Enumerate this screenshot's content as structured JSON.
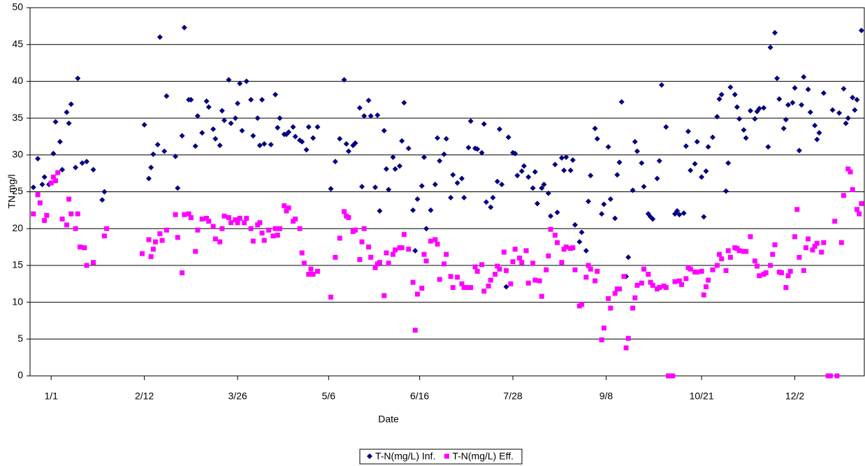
{
  "chart_data": {
    "type": "scatter",
    "x_label": "Date",
    "y_label": "TN mg/l",
    "xlim": [
      -8.5,
      367.3
    ],
    "xticks": [
      {
        "value": 1,
        "label": "1/1"
      },
      {
        "value": 43,
        "label": "2/12"
      },
      {
        "value": 85,
        "label": "3/26"
      },
      {
        "value": 126,
        "label": "5/6"
      },
      {
        "value": 167,
        "label": "6/16"
      },
      {
        "value": 209,
        "label": "7/28"
      },
      {
        "value": 251,
        "label": "9/8"
      },
      {
        "value": 294,
        "label": "10/21"
      },
      {
        "value": 336,
        "label": "12/2"
      }
    ],
    "ylim": [
      0,
      50
    ],
    "yticks": [
      0,
      5,
      10,
      15,
      20,
      25,
      30,
      35,
      40,
      45,
      50
    ],
    "grid": true,
    "legend": "bottom",
    "series": [
      {
        "name": "T-N(mg/L) Inf.",
        "color": "#000080",
        "marker": "diamond",
        "x": [
          -7,
          -5,
          -3,
          -2,
          0,
          2,
          3,
          5,
          6,
          8,
          9,
          10,
          12,
          13,
          15,
          17,
          20,
          24,
          25,
          43,
          45,
          46,
          47,
          49,
          50,
          52,
          53,
          57,
          58,
          60,
          61,
          63,
          64,
          66,
          67,
          69,
          71,
          72,
          74,
          75,
          77,
          78,
          79,
          81,
          82,
          84,
          85,
          86,
          87,
          89,
          91,
          92,
          94,
          95,
          96,
          97,
          100,
          102,
          103,
          104,
          106,
          107,
          108,
          110,
          111,
          113,
          114,
          116,
          117,
          119,
          121,
          127,
          129,
          131,
          133,
          134,
          135,
          137,
          138,
          140,
          141,
          142,
          144,
          145,
          147,
          148,
          149,
          151,
          152,
          153,
          155,
          156,
          158,
          159,
          160,
          162,
          164,
          165,
          166,
          168,
          169,
          170,
          172,
          174,
          175,
          176,
          178,
          179,
          181,
          182,
          184,
          186,
          187,
          189,
          190,
          192,
          193,
          195,
          196,
          197,
          199,
          200,
          202,
          203,
          204,
          206,
          207,
          209,
          210,
          211,
          213,
          214,
          216,
          218,
          219,
          220,
          222,
          223,
          225,
          226,
          228,
          229,
          231,
          232,
          233,
          235,
          236,
          237,
          239,
          240,
          242,
          243,
          244,
          246,
          247,
          249,
          250,
          252,
          253,
          255,
          256,
          257,
          258,
          260,
          261,
          263,
          264,
          265,
          267,
          268,
          270,
          271,
          272,
          274,
          275,
          276,
          278,
          282,
          283,
          284,
          286,
          287,
          288,
          289,
          291,
          292,
          294,
          295,
          296,
          297,
          299,
          301,
          302,
          303,
          305,
          306,
          307,
          309,
          310,
          311,
          313,
          314,
          316,
          318,
          319,
          320,
          322,
          324,
          325,
          327,
          328,
          329,
          331,
          332,
          333,
          335,
          336,
          338,
          339,
          340,
          342,
          343,
          345,
          346,
          347,
          349,
          353,
          356,
          358,
          359,
          360,
          362,
          363,
          364,
          366
        ],
        "values": [
          25.6,
          29.5,
          26,
          27,
          26,
          30.2,
          34.5,
          31.8,
          28,
          35.8,
          34.3,
          36.9,
          28.3,
          40.4,
          28.9,
          29.1,
          28,
          23.9,
          25,
          34.1,
          26.8,
          28.3,
          30.1,
          31.4,
          46,
          30.5,
          38,
          29.8,
          25.5,
          32.6,
          47.3,
          37.5,
          37.5,
          31.2,
          35.3,
          33,
          37.3,
          36.5,
          33.5,
          32.2,
          31.3,
          36,
          34.7,
          40.2,
          34.3,
          35,
          37,
          39.7,
          33.3,
          40,
          37.5,
          32.6,
          35,
          31.3,
          37.5,
          31.5,
          31.4,
          38.2,
          33.7,
          35,
          32.8,
          32.8,
          33.1,
          33.8,
          32.5,
          32,
          31.8,
          30.7,
          33.8,
          32.3,
          33.8,
          25.4,
          29.1,
          32.2,
          40.2,
          31.5,
          30.5,
          31.3,
          31.6,
          36.4,
          25.7,
          35.3,
          37.4,
          35.3,
          25.6,
          35.4,
          22.4,
          33.3,
          28.1,
          25.3,
          29.7,
          28.1,
          28.5,
          31.9,
          37.1,
          30.9,
          22.5,
          17,
          24,
          25.8,
          29.7,
          20,
          22.5,
          26,
          32.3,
          29.2,
          30.1,
          32.2,
          24.2,
          27.3,
          26.2,
          26.8,
          24.2,
          31,
          34.6,
          30.9,
          30.8,
          30.3,
          34.2,
          23.6,
          22.9,
          24.2,
          26.4,
          33.5,
          26,
          12.1,
          32.4,
          30.3,
          30.2,
          27.2,
          27.8,
          28.5,
          27,
          25.5,
          27.7,
          23.4,
          25.5,
          26,
          24.8,
          21.7,
          28.7,
          22.2,
          29.6,
          27.9,
          29.7,
          27.9,
          29.3,
          20.5,
          18.2,
          19.5,
          17,
          23.7,
          27.2,
          33.6,
          32.2,
          22,
          23.3,
          31.1,
          24,
          21.4,
          27.3,
          29,
          37.2,
          13.5,
          16.1,
          25.2,
          31.8,
          30.5,
          28.9,
          25.7,
          22,
          21.6,
          21.3,
          26.8,
          29.2,
          39.5,
          33.8,
          22,
          22.4,
          21.9,
          22.1,
          31.2,
          33.2,
          27.9,
          28.8,
          31.8,
          27,
          21.6,
          27.8,
          31.1,
          32.4,
          35.2,
          37.6,
          38.2,
          25.1,
          28.9,
          39.2,
          38.2,
          36.5,
          34.9,
          33.4,
          32.3,
          36,
          34.9,
          35.9,
          36.3,
          36.4,
          31.1,
          44.6,
          46.6,
          40.4,
          37.6,
          33.6,
          34.8,
          36.8,
          37.1,
          39.1,
          30.6,
          36.8,
          40.6,
          38.9,
          35.8,
          34,
          32.1,
          33,
          38.4,
          36.1,
          35.7,
          39,
          34.3,
          35,
          37.8,
          36.1,
          37.5,
          46.9
        ]
      },
      {
        "name": "T-N(mg/L) Eff.",
        "color": "#ff00ff",
        "marker": "square",
        "x": [
          -7,
          -5,
          -4,
          -2,
          -1,
          1,
          2,
          3,
          4,
          6,
          8,
          9,
          10,
          12,
          13,
          14,
          16,
          17,
          20,
          25,
          26,
          42,
          45,
          46,
          47,
          48,
          50,
          51,
          53,
          57,
          58,
          60,
          61,
          63,
          64,
          66,
          67,
          69,
          71,
          72,
          74,
          75,
          77,
          78,
          79,
          81,
          82,
          84,
          85,
          86,
          88,
          89,
          91,
          92,
          94,
          95,
          96,
          97,
          99,
          101,
          102,
          103,
          104,
          106,
          107,
          108,
          110,
          111,
          113,
          114,
          115,
          117,
          118,
          119,
          121,
          127,
          129,
          131,
          133,
          134,
          135,
          137,
          138,
          140,
          141,
          142,
          144,
          145,
          147,
          148,
          149,
          151,
          152,
          153,
          155,
          156,
          158,
          159,
          160,
          162,
          164,
          165,
          166,
          168,
          169,
          170,
          172,
          174,
          175,
          176,
          178,
          179,
          181,
          182,
          184,
          186,
          187,
          189,
          190,
          192,
          193,
          195,
          196,
          198,
          199,
          201,
          202,
          203,
          205,
          206,
          208,
          209,
          210,
          212,
          213,
          215,
          216,
          218,
          219,
          221,
          222,
          224,
          225,
          226,
          228,
          229,
          231,
          232,
          233,
          235,
          236,
          237,
          239,
          240,
          242,
          243,
          244,
          246,
          247,
          249,
          250,
          252,
          253,
          255,
          256,
          257,
          259,
          260,
          261,
          263,
          264,
          265,
          267,
          268,
          270,
          271,
          272,
          274,
          275,
          277,
          278,
          279,
          281,
          282,
          284,
          285,
          287,
          288,
          289,
          291,
          292,
          294,
          295,
          296,
          297,
          299,
          301,
          302,
          303,
          305,
          306,
          307,
          309,
          310,
          311,
          313,
          314,
          316,
          318,
          319,
          320,
          322,
          323,
          325,
          326,
          327,
          329,
          330,
          332,
          333,
          334,
          336,
          337,
          338,
          340,
          341,
          342,
          344,
          345,
          346,
          348,
          349,
          351,
          352,
          354,
          355,
          357,
          358,
          360,
          361,
          362,
          364,
          365,
          366
        ],
        "values": [
          22,
          24.6,
          23.5,
          21.1,
          21.8,
          26.2,
          27,
          26.5,
          27.6,
          21.3,
          20.5,
          24,
          22,
          20,
          22,
          17.5,
          17.4,
          15,
          15.4,
          19,
          20,
          16.6,
          18.5,
          16.2,
          17.2,
          18.2,
          19.3,
          18.4,
          19.8,
          21.9,
          18.8,
          14,
          21.9,
          22,
          21.5,
          16.9,
          19.8,
          21.3,
          21.4,
          21,
          20.3,
          18.6,
          18.2,
          20,
          21.7,
          21.5,
          20.8,
          21.2,
          20.8,
          21.4,
          20.8,
          21.4,
          20,
          18.3,
          20.5,
          20.8,
          19.4,
          18.4,
          19.8,
          19,
          20,
          19.1,
          20,
          23.1,
          22.4,
          22.8,
          21,
          21.3,
          20,
          16.7,
          15.3,
          13.8,
          14.5,
          13.8,
          14.2,
          10.7,
          16.1,
          18.7,
          22.3,
          21.7,
          21.5,
          19.6,
          19.8,
          15.8,
          18.2,
          20,
          17.5,
          16.1,
          14.7,
          15.2,
          15.4,
          10.9,
          16.7,
          15.3,
          16.5,
          17.1,
          17.4,
          17.4,
          19.2,
          17.2,
          12.7,
          6.2,
          11.1,
          11.9,
          16.5,
          15.6,
          18.3,
          18.5,
          17.9,
          13.1,
          15.2,
          16.5,
          13.5,
          12,
          13.4,
          12.5,
          12,
          12,
          12,
          14.8,
          14.2,
          15.1,
          11.5,
          12.2,
          13,
          13.8,
          14.9,
          14.5,
          16.8,
          14.3,
          12.5,
          15.5,
          17.2,
          16,
          15.4,
          17,
          12.6,
          15.3,
          13,
          12.9,
          10.8,
          14.4,
          16.3,
          19.9,
          19.1,
          18.1,
          15.4,
          17.2,
          17.5,
          17.3,
          17.4,
          14.4,
          9.5,
          9.7,
          13.4,
          15,
          14.5,
          12.9,
          14.2,
          4.9,
          6.5,
          10.5,
          9.2,
          11.2,
          11.8,
          11.8,
          13.5,
          3.8,
          5.1,
          9.2,
          10.6,
          12.3,
          12.6,
          14.5,
          13.8,
          12.7,
          12.3,
          11.8,
          12,
          12.2,
          12,
          0,
          0,
          12.8,
          12.9,
          12.4,
          13.2,
          14.7,
          14.5,
          14.1,
          14.1,
          14.2,
          11,
          12.1,
          13,
          14.4,
          15,
          16.5,
          15.9,
          14.3,
          17,
          16.1,
          17.4,
          17.3,
          17,
          16.9,
          16.9,
          18.9,
          15.6,
          14.9,
          13.6,
          13.8,
          14,
          15,
          16.5,
          17.8,
          14.1,
          14,
          12,
          13.6,
          14.2,
          18.9,
          22.6,
          16.1,
          14.3,
          17.4,
          18.6,
          17.1,
          17.6,
          18,
          16.8,
          18.1,
          0,
          0,
          21,
          0,
          18.1,
          24.5,
          28.1,
          27.7,
          25.3,
          22.6,
          22,
          23.4
        ]
      }
    ]
  }
}
